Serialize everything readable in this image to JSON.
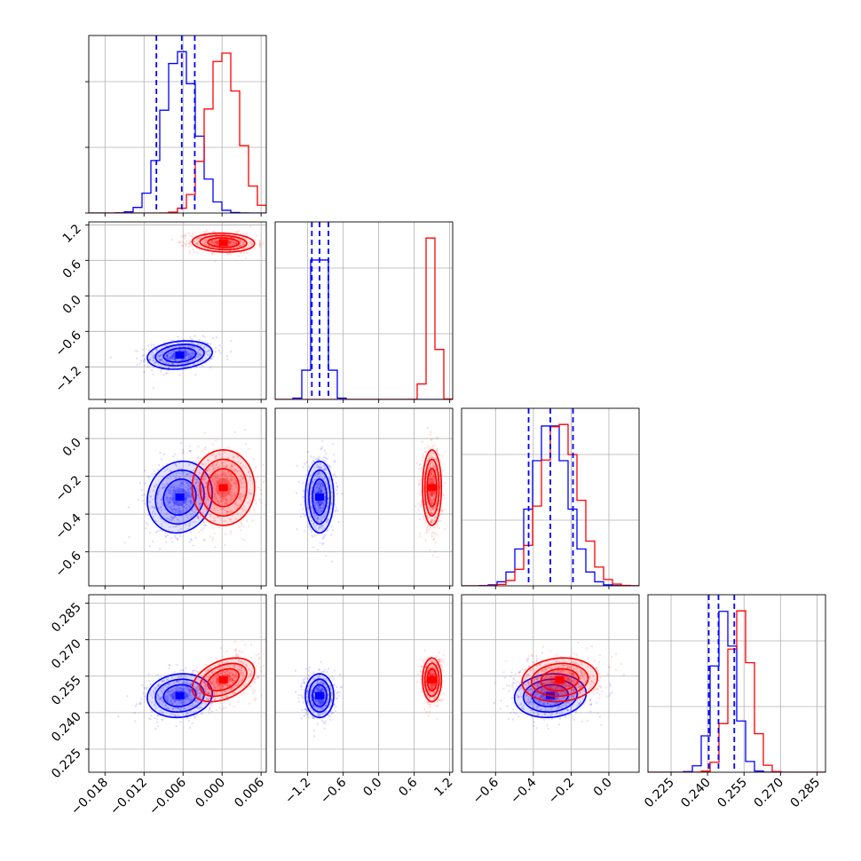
{
  "colors": {
    "blue": "#0000ff",
    "red": "#ff0000",
    "grid": "#b0b0b0"
  },
  "chart_data": {
    "type": "corner",
    "title": "",
    "grid": true,
    "legend": "none",
    "params": [
      {
        "range": [
          -0.0205,
          0.0068
        ],
        "ticks": [
          -0.018,
          -0.012,
          -0.006,
          0.0,
          0.006
        ],
        "tick_labels": [
          "−0.018",
          "−0.012",
          "−0.006",
          "0.000",
          "0.006"
        ]
      },
      {
        "range": [
          -1.75,
          1.25
        ],
        "ticks": [
          -1.2,
          -0.6,
          0.0,
          0.6,
          1.2
        ],
        "tick_labels": [
          "−1.2",
          "−0.6",
          "0.0",
          "0.6",
          "1.2"
        ]
      },
      {
        "range": [
          -0.78,
          0.16
        ],
        "ticks": [
          -0.6,
          -0.4,
          -0.2,
          0.0
        ],
        "tick_labels": [
          "−0.6",
          "−0.4",
          "−0.2",
          "0.0"
        ]
      },
      {
        "range": [
          0.2155,
          0.2885
        ],
        "ticks": [
          0.225,
          0.24,
          0.255,
          0.27,
          0.285
        ],
        "tick_labels": [
          "0.225",
          "0.240",
          "0.255",
          "0.270",
          "0.285"
        ]
      }
    ],
    "series": [
      {
        "color": "#0000ff",
        "mean": [
          -0.0065,
          -1.0,
          -0.31,
          0.247
        ],
        "std": [
          0.0025,
          0.12,
          0.095,
          0.0045
        ],
        "rho": {
          "0-1": 0.2,
          "0-2": 0.1,
          "0-3": 0.1,
          "1-2": 0.0,
          "1-3": 0.0,
          "2-3": 0.1
        },
        "quantiles": [
          [
            -0.0101,
            -0.0062,
            -0.0042
          ],
          [
            -1.13,
            -1.0,
            -0.85
          ],
          [
            -0.425,
            -0.31,
            -0.19
          ],
          [
            0.2405,
            0.2445,
            0.251
          ]
        ]
      },
      {
        "color": "#ff0000",
        "mean": [
          0.0002,
          0.9,
          -0.26,
          0.2535
        ],
        "std": [
          0.0024,
          0.08,
          0.1,
          0.0045
        ],
        "rho": {
          "0-1": -0.1,
          "0-2": 0.0,
          "0-3": 0.4,
          "1-2": 0.0,
          "1-3": 0.0,
          "2-3": 0.1
        }
      }
    ]
  }
}
